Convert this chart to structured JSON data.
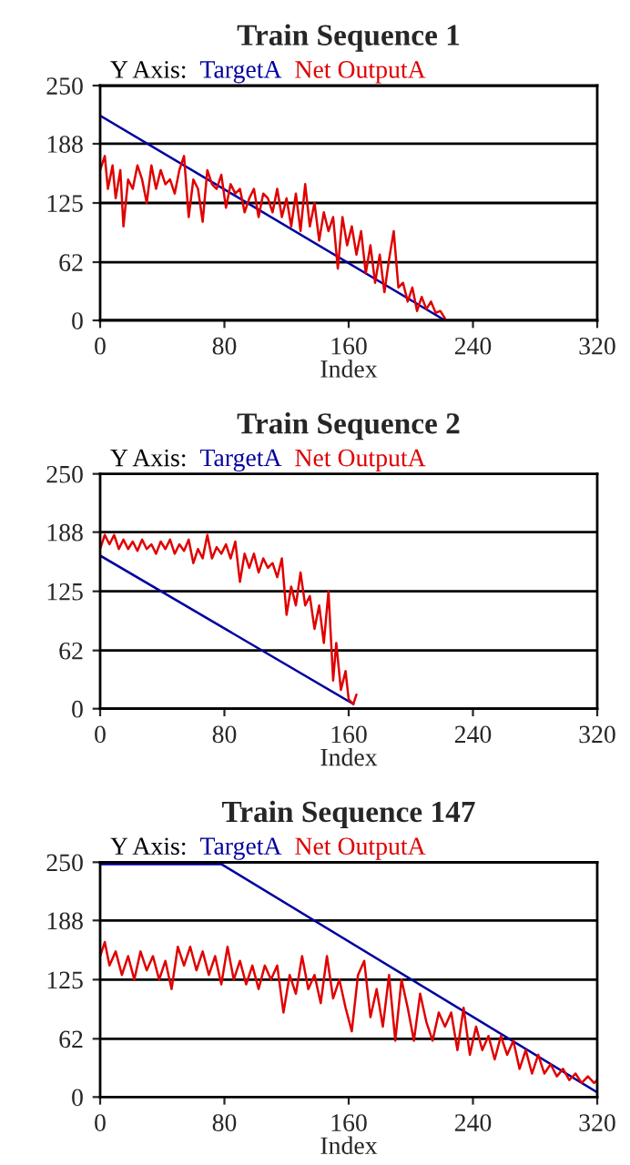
{
  "chart_data": [
    {
      "type": "line",
      "title": "Train Sequence 1",
      "legend_title": "Y Axis:",
      "xlabel": "Index",
      "xlim": [
        0,
        320
      ],
      "xticks": [
        0,
        80,
        160,
        240,
        320
      ],
      "ylim": [
        0,
        250
      ],
      "yticks": [
        0,
        62,
        125,
        188,
        250
      ],
      "grid": "y",
      "legend": "top",
      "marker": "none",
      "line_style": "solid",
      "series": [
        {
          "name": "TargetA",
          "color": "#0000a0",
          "x": [
            0,
            222
          ],
          "values": [
            218,
            0
          ]
        },
        {
          "name": "Net OutputA",
          "color": "#e00000",
          "x": [
            0,
            3,
            5,
            8,
            10,
            13,
            15,
            18,
            21,
            24,
            27,
            30,
            33,
            36,
            39,
            42,
            45,
            48,
            51,
            54,
            57,
            60,
            63,
            66,
            69,
            72,
            75,
            78,
            81,
            84,
            87,
            90,
            93,
            96,
            99,
            102,
            105,
            108,
            111,
            114,
            117,
            120,
            123,
            126,
            129,
            132,
            135,
            138,
            141,
            144,
            147,
            150,
            153,
            156,
            159,
            162,
            165,
            168,
            171,
            174,
            177,
            180,
            183,
            186,
            189,
            192,
            195,
            198,
            201,
            204,
            207,
            210,
            213,
            216,
            219,
            222
          ],
          "values": [
            160,
            175,
            140,
            165,
            130,
            160,
            100,
            150,
            140,
            165,
            150,
            125,
            165,
            140,
            160,
            145,
            150,
            135,
            160,
            175,
            110,
            150,
            140,
            105,
            160,
            145,
            140,
            155,
            120,
            145,
            135,
            140,
            115,
            130,
            140,
            110,
            135,
            130,
            115,
            140,
            110,
            130,
            100,
            135,
            95,
            145,
            100,
            125,
            85,
            115,
            95,
            110,
            55,
            110,
            80,
            100,
            70,
            95,
            50,
            80,
            40,
            70,
            30,
            65,
            95,
            35,
            40,
            20,
            35,
            10,
            25,
            12,
            20,
            8,
            10,
            2
          ]
        }
      ]
    },
    {
      "type": "line",
      "title": "Train Sequence 2",
      "legend_title": "Y Axis:",
      "xlabel": "Index",
      "xlim": [
        0,
        320
      ],
      "xticks": [
        0,
        80,
        160,
        240,
        320
      ],
      "ylim": [
        0,
        250
      ],
      "yticks": [
        0,
        62,
        125,
        188,
        250
      ],
      "grid": "y",
      "legend": "top",
      "marker": "none",
      "line_style": "solid",
      "series": [
        {
          "name": "TargetA",
          "color": "#0000a0",
          "x": [
            0,
            163
          ],
          "values": [
            163,
            5
          ]
        },
        {
          "name": "Net OutputA",
          "color": "#e00000",
          "x": [
            0,
            3,
            6,
            9,
            12,
            15,
            18,
            21,
            24,
            27,
            30,
            33,
            36,
            39,
            42,
            45,
            48,
            51,
            54,
            57,
            60,
            63,
            66,
            69,
            72,
            75,
            78,
            81,
            84,
            87,
            90,
            93,
            96,
            99,
            102,
            105,
            108,
            111,
            114,
            117,
            120,
            123,
            126,
            129,
            132,
            135,
            138,
            141,
            144,
            147,
            150,
            152,
            155,
            158,
            160,
            163,
            165
          ],
          "values": [
            170,
            185,
            175,
            185,
            170,
            180,
            170,
            178,
            168,
            180,
            170,
            175,
            165,
            178,
            170,
            180,
            165,
            175,
            168,
            180,
            155,
            170,
            160,
            185,
            160,
            172,
            165,
            175,
            160,
            178,
            135,
            165,
            150,
            165,
            145,
            160,
            150,
            155,
            140,
            160,
            100,
            130,
            110,
            145,
            110,
            120,
            85,
            110,
            70,
            125,
            30,
            70,
            20,
            40,
            10,
            5,
            15
          ]
        }
      ]
    },
    {
      "type": "line",
      "title": "Train Sequence 147",
      "legend_title": "Y Axis:",
      "xlabel": "Index",
      "xlim": [
        0,
        320
      ],
      "xticks": [
        0,
        80,
        160,
        240,
        320
      ],
      "ylim": [
        0,
        250
      ],
      "yticks": [
        0,
        62,
        125,
        188,
        250
      ],
      "grid": "y",
      "legend": "top",
      "marker": "none",
      "line_style": "solid",
      "series": [
        {
          "name": "TargetA",
          "color": "#0000a0",
          "x": [
            0,
            78,
            320
          ],
          "values": [
            248,
            248,
            5
          ]
        },
        {
          "name": "Net OutputA",
          "color": "#e00000",
          "x": [
            0,
            3,
            6,
            10,
            14,
            18,
            22,
            26,
            30,
            34,
            38,
            42,
            46,
            50,
            54,
            58,
            62,
            66,
            70,
            74,
            78,
            82,
            86,
            90,
            94,
            98,
            102,
            106,
            110,
            114,
            118,
            122,
            126,
            130,
            134,
            138,
            142,
            146,
            150,
            154,
            158,
            162,
            166,
            170,
            174,
            178,
            182,
            186,
            190,
            194,
            198,
            202,
            206,
            210,
            214,
            218,
            222,
            226,
            230,
            234,
            238,
            242,
            246,
            250,
            254,
            258,
            262,
            266,
            270,
            274,
            278,
            282,
            286,
            290,
            294,
            298,
            302,
            306,
            310,
            314,
            318,
            320
          ],
          "values": [
            150,
            165,
            140,
            155,
            130,
            150,
            125,
            155,
            135,
            150,
            125,
            145,
            115,
            160,
            140,
            160,
            135,
            155,
            130,
            150,
            120,
            160,
            125,
            145,
            120,
            140,
            115,
            140,
            125,
            140,
            90,
            130,
            110,
            150,
            115,
            130,
            100,
            150,
            105,
            125,
            95,
            70,
            130,
            145,
            85,
            115,
            75,
            130,
            60,
            125,
            95,
            60,
            110,
            80,
            60,
            90,
            75,
            90,
            50,
            95,
            45,
            75,
            50,
            65,
            40,
            65,
            45,
            60,
            30,
            50,
            25,
            45,
            25,
            35,
            22,
            30,
            18,
            25,
            15,
            22,
            15,
            18
          ]
        }
      ]
    }
  ]
}
